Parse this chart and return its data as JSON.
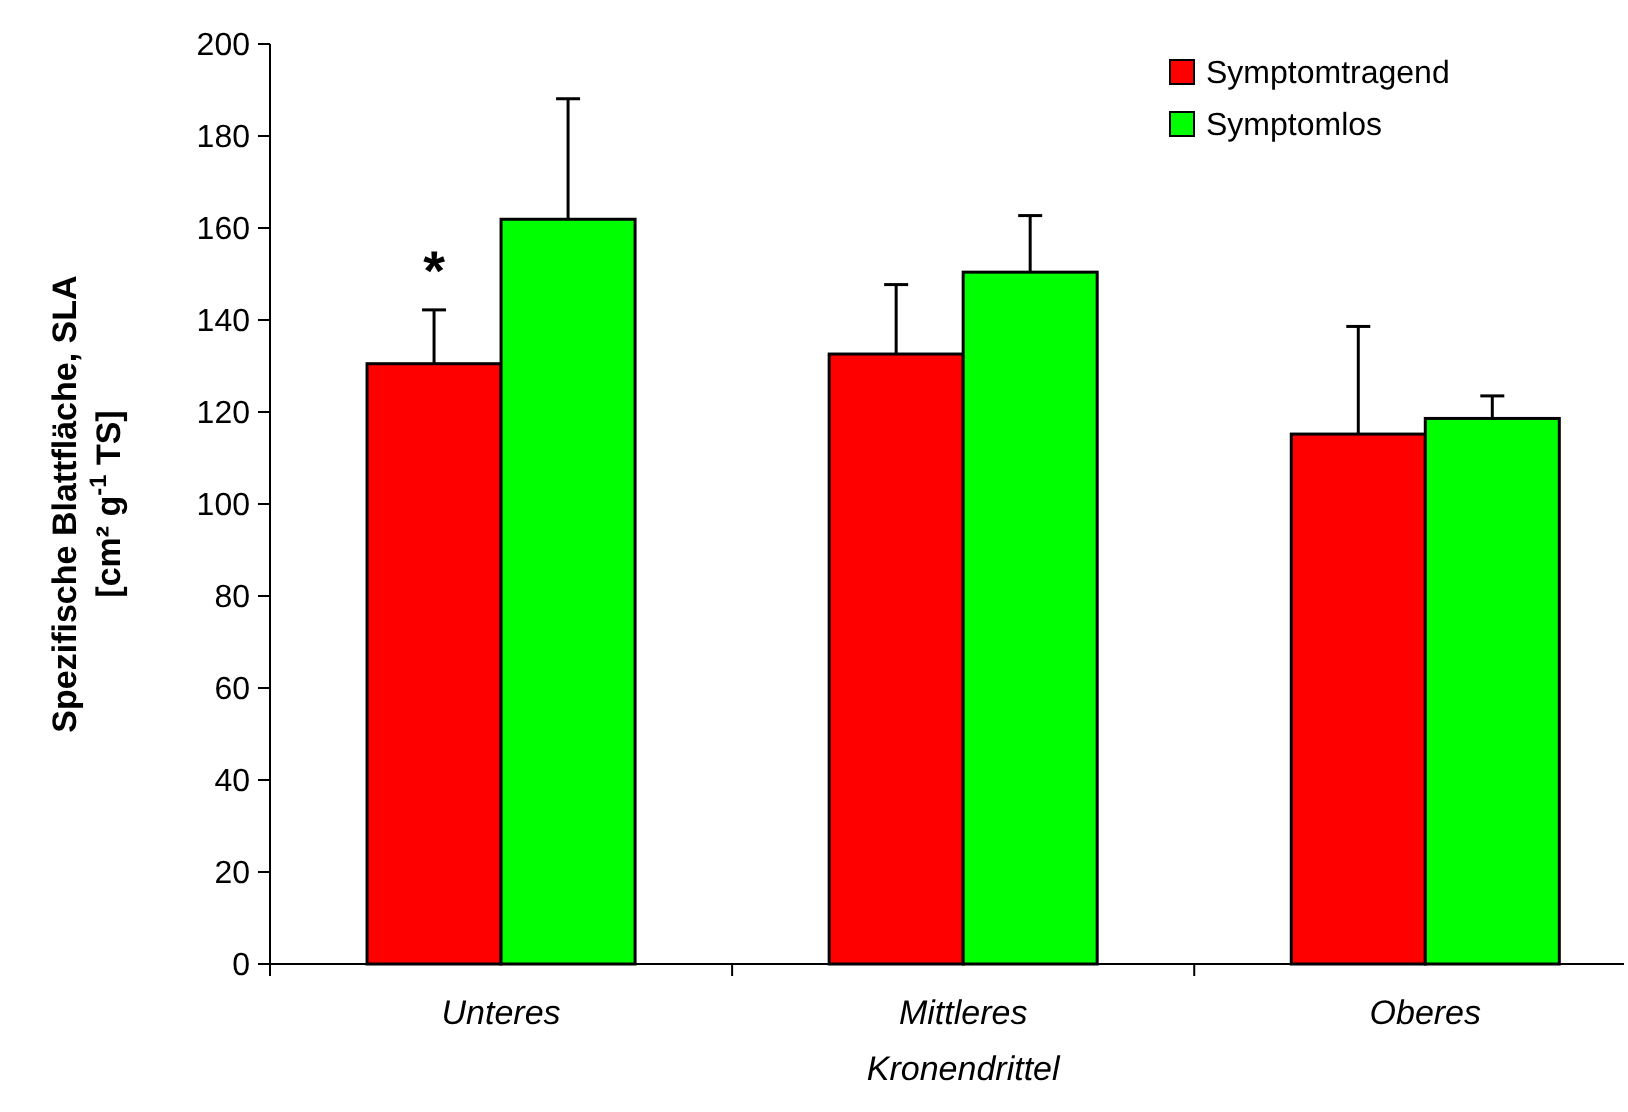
{
  "chart_data": {
    "type": "bar",
    "ylabel": "Spezifische Blattfläche, SLA\n[cm² g$^{-1}$ TS]",
    "xlabel": "Kronendrittel",
    "categories": [
      "Unteres",
      "Mittleres",
      "Oberes"
    ],
    "series": [
      {
        "name": "Symptomtragend",
        "color": "#ff0000",
        "values": [
          130.5,
          132.6,
          115.2
        ],
        "errors": [
          [
            130.5,
            142.2
          ],
          [
            132.6,
            147.7
          ],
          [
            115.2,
            138.6
          ]
        ]
      },
      {
        "name": "Symptomlos",
        "color": "#00ff00",
        "values": [
          161.9,
          150.4,
          118.6
        ],
        "errors": [
          [
            161.9,
            188.1
          ],
          [
            150.4,
            162.7
          ],
          [
            118.6,
            123.5
          ]
        ]
      }
    ],
    "ylim": [
      0,
      200
    ],
    "yticks": [
      0,
      20,
      40,
      60,
      80,
      100,
      120,
      140,
      160,
      180,
      200
    ],
    "legend": "top right",
    "grid": false,
    "annotations": [
      {
        "text": "*",
        "x": "Unteres",
        "y": 155
      }
    ]
  }
}
